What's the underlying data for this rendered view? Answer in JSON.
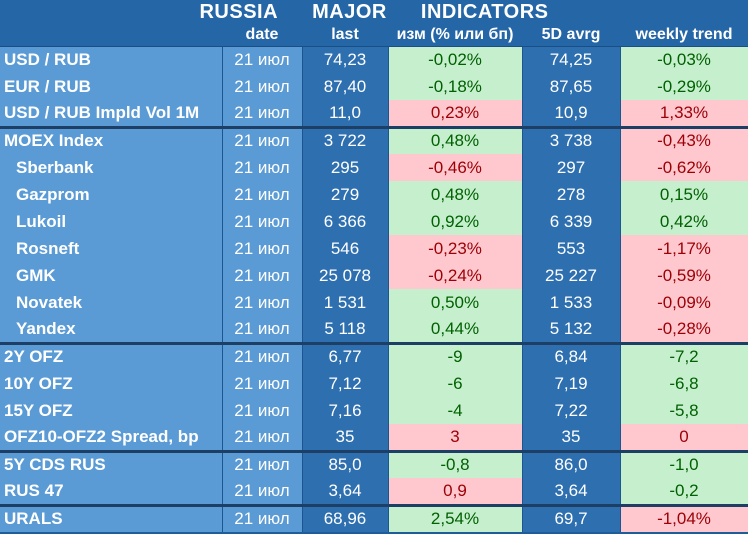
{
  "title": [
    "RUSSIA",
    "MAJOR",
    "INDICATORS"
  ],
  "headers": [
    "",
    "date",
    "last",
    "изм (% или бп)",
    "5D avrg",
    "weekly trend"
  ],
  "rows": [
    {
      "name": "USD / RUB",
      "date": "21 июл",
      "last": "74,23",
      "chg": "-0,02%",
      "chg_dir": "pos",
      "avg": "74,25",
      "trend": "-0,03%",
      "trend_dir": "pos",
      "group": "fx",
      "sub": false
    },
    {
      "name": "EUR / RUB",
      "date": "21 июл",
      "last": "87,40",
      "chg": "-0,18%",
      "chg_dir": "pos",
      "avg": "87,65",
      "trend": "-0,29%",
      "trend_dir": "pos",
      "group": "fx",
      "sub": false
    },
    {
      "name": "USD / RUB Impld Vol 1M",
      "date": "21 июл",
      "last": "11,0",
      "chg": "0,23%",
      "chg_dir": "neg",
      "avg": "10,9",
      "trend": "1,33%",
      "trend_dir": "neg",
      "group": "fx",
      "sub": false
    },
    {
      "name": "MOEX Index",
      "date": "21 июл",
      "last": "3 722",
      "chg": "0,48%",
      "chg_dir": "pos",
      "avg": "3 738",
      "trend": "-0,43%",
      "trend_dir": "neg",
      "group": "eq",
      "sub": false
    },
    {
      "name": "Sberbank",
      "date": "21 июл",
      "last": "295",
      "chg": "-0,46%",
      "chg_dir": "neg",
      "avg": "297",
      "trend": "-0,62%",
      "trend_dir": "neg",
      "group": "eq",
      "sub": true
    },
    {
      "name": "Gazprom",
      "date": "21 июл",
      "last": "279",
      "chg": "0,48%",
      "chg_dir": "pos",
      "avg": "278",
      "trend": "0,15%",
      "trend_dir": "pos",
      "group": "eq",
      "sub": true
    },
    {
      "name": "Lukoil",
      "date": "21 июл",
      "last": "6 366",
      "chg": "0,92%",
      "chg_dir": "pos",
      "avg": "6 339",
      "trend": "0,42%",
      "trend_dir": "pos",
      "group": "eq",
      "sub": true
    },
    {
      "name": "Rosneft",
      "date": "21 июл",
      "last": "546",
      "chg": "-0,23%",
      "chg_dir": "neg",
      "avg": "553",
      "trend": "-1,17%",
      "trend_dir": "neg",
      "group": "eq",
      "sub": true
    },
    {
      "name": "GMK",
      "date": "21 июл",
      "last": "25 078",
      "chg": "-0,24%",
      "chg_dir": "neg",
      "avg": "25 227",
      "trend": "-0,59%",
      "trend_dir": "neg",
      "group": "eq",
      "sub": true
    },
    {
      "name": "Novatek",
      "date": "21 июл",
      "last": "1 531",
      "chg": "0,50%",
      "chg_dir": "pos",
      "avg": "1 533",
      "trend": "-0,09%",
      "trend_dir": "neg",
      "group": "eq",
      "sub": true
    },
    {
      "name": "Yandex",
      "date": "21 июл",
      "last": "5 118",
      "chg": "0,44%",
      "chg_dir": "pos",
      "avg": "5 132",
      "trend": "-0,28%",
      "trend_dir": "neg",
      "group": "eq",
      "sub": true
    },
    {
      "name": "2Y OFZ",
      "date": "21 июл",
      "last": "6,77",
      "chg": "-9",
      "chg_dir": "pos",
      "avg": "6,84",
      "trend": "-7,2",
      "trend_dir": "pos",
      "group": "ofz",
      "sub": false
    },
    {
      "name": "10Y OFZ",
      "date": "21 июл",
      "last": "7,12",
      "chg": "-6",
      "chg_dir": "pos",
      "avg": "7,19",
      "trend": "-6,8",
      "trend_dir": "pos",
      "group": "ofz",
      "sub": false
    },
    {
      "name": "15Y OFZ",
      "date": "21 июл",
      "last": "7,16",
      "chg": "-4",
      "chg_dir": "pos",
      "avg": "7,22",
      "trend": "-5,8",
      "trend_dir": "pos",
      "group": "ofz",
      "sub": false
    },
    {
      "name": "OFZ10-OFZ2 Spread, bp",
      "date": "21 июл",
      "last": "35",
      "chg": "3",
      "chg_dir": "neg",
      "avg": "35",
      "trend": "0",
      "trend_dir": "neg",
      "group": "ofz",
      "sub": false
    },
    {
      "name": "5Y CDS RUS",
      "date": "21 июл",
      "last": "85,0",
      "chg": "-0,8",
      "chg_dir": "pos",
      "avg": "86,0",
      "trend": "-1,0",
      "trend_dir": "pos",
      "group": "cds",
      "sub": false
    },
    {
      "name": "RUS 47",
      "date": "21 июл",
      "last": "3,64",
      "chg": "0,9",
      "chg_dir": "neg",
      "avg": "3,64",
      "trend": "-0,2",
      "trend_dir": "pos",
      "group": "cds",
      "sub": false
    },
    {
      "name": "URALS",
      "date": "21 июл",
      "last": "68,96",
      "chg": "2,54%",
      "chg_dir": "pos",
      "avg": "69,7",
      "trend": "-1,04%",
      "trend_dir": "neg",
      "group": "oil",
      "sub": false
    }
  ]
}
